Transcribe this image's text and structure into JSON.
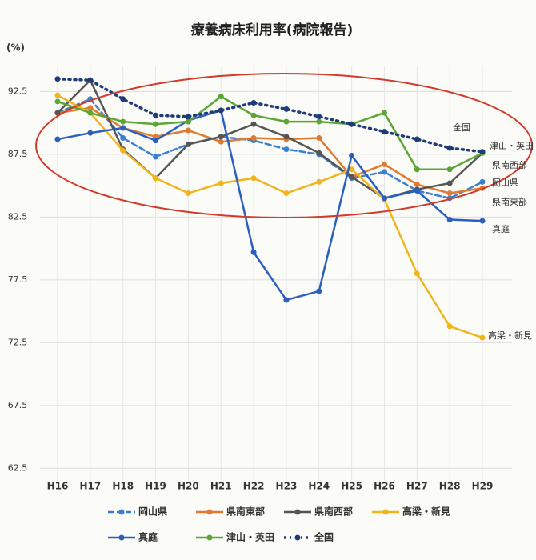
{
  "chart_data": {
    "type": "line",
    "title": "療養病床利用率(病院報告)",
    "y_label": "(%)",
    "categories": [
      "H16",
      "H17",
      "H18",
      "H19",
      "H20",
      "H21",
      "H22",
      "H23",
      "H24",
      "H25",
      "H26",
      "H27",
      "H28",
      "H29"
    ],
    "ylim": [
      61.5,
      94.5
    ],
    "yticks": [
      62.5,
      67.5,
      72.5,
      77.5,
      82.5,
      87.5,
      92.5
    ],
    "grid": true,
    "series": [
      {
        "name": "岡山県",
        "color": "#3a7fd0",
        "style": "dashed",
        "values": [
          90.8,
          91.9,
          88.8,
          87.3,
          88.3,
          88.9,
          88.6,
          87.9,
          87.5,
          85.6,
          86.1,
          84.6,
          84.0,
          85.3
        ]
      },
      {
        "name": "県南東部",
        "color": "#e07a30",
        "style": "solid",
        "values": [
          90.8,
          91.2,
          89.6,
          88.9,
          89.4,
          88.5,
          88.8,
          88.7,
          88.8,
          85.7,
          86.7,
          85.1,
          84.4,
          84.8
        ]
      },
      {
        "name": "県南西部",
        "color": "#555555",
        "style": "solid",
        "values": [
          90.8,
          93.4,
          87.9,
          85.6,
          88.3,
          88.9,
          89.9,
          88.9,
          87.6,
          85.7,
          84.0,
          84.7,
          85.2,
          87.6
        ]
      },
      {
        "name": "高梁・新見",
        "color": "#f0b51c",
        "style": "solid",
        "values": [
          92.2,
          90.8,
          87.8,
          85.6,
          84.4,
          85.2,
          85.6,
          84.4,
          85.3,
          86.3,
          83.9,
          78.0,
          73.8,
          72.9
        ]
      },
      {
        "name": "真庭",
        "color": "#2a5fc0",
        "style": "solid",
        "values": [
          88.7,
          89.2,
          89.6,
          88.6,
          90.2,
          91.0,
          79.7,
          75.9,
          76.6,
          87.4,
          84.0,
          84.6,
          82.3,
          82.2
        ]
      },
      {
        "name": "津山・英田",
        "color": "#5aa533",
        "style": "solid",
        "values": [
          91.7,
          90.8,
          90.1,
          89.9,
          90.1,
          92.1,
          90.6,
          90.1,
          90.1,
          89.9,
          90.8,
          86.3,
          86.3,
          87.6
        ]
      },
      {
        "name": "全国",
        "color": "#1f3b7a",
        "style": "dotted",
        "values": [
          93.5,
          93.4,
          91.9,
          90.6,
          90.5,
          91.0,
          91.6,
          91.1,
          90.5,
          89.9,
          89.3,
          88.7,
          88.0,
          87.7
        ]
      }
    ]
  }
}
